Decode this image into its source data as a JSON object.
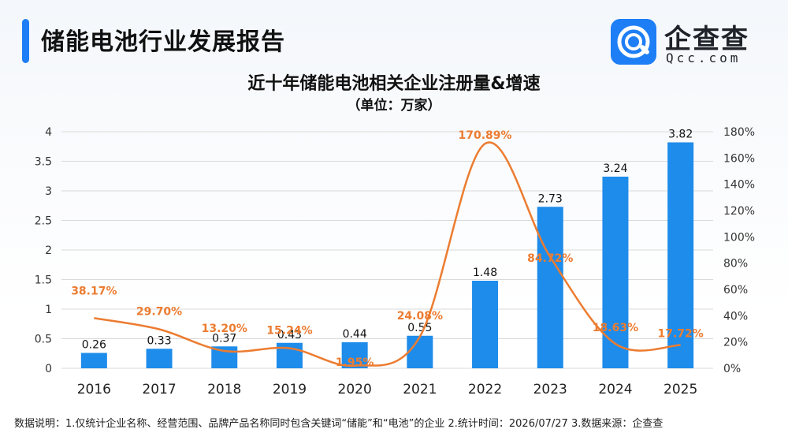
{
  "header": {
    "report_title": "储能电池行业发展报告",
    "logo_name": "企查查",
    "logo_sub": "Qcc.com",
    "accent_color": "#1e7ef5"
  },
  "chart_data": {
    "type": "bar",
    "title": "近十年储能电池相关企业注册量&增速",
    "subtitle": "（单位：万家）",
    "categories": [
      "2016",
      "2017",
      "2018",
      "2019",
      "2020",
      "2021",
      "2022",
      "2023",
      "2024",
      "2025"
    ],
    "series": [
      {
        "type": "bar",
        "axis": "left",
        "values": [
          0.26,
          0.33,
          0.37,
          0.43,
          0.44,
          0.55,
          1.48,
          2.73,
          3.24,
          3.82
        ],
        "labels": [
          "0.26",
          "0.33",
          "0.37",
          "0.43",
          "0.44",
          "0.55",
          "1.48",
          "2.73",
          "3.24",
          "3.82"
        ],
        "color": "#1e8cea"
      },
      {
        "type": "line",
        "axis": "right",
        "values": [
          38.17,
          29.7,
          13.2,
          15.24,
          1.95,
          24.08,
          170.89,
          84.72,
          18.63,
          17.72
        ],
        "labels": [
          "38.17%",
          "29.70%",
          "13.20%",
          "15.24%",
          "1.95%",
          "24.08%",
          "170.89%",
          "84.72%",
          "18.63%",
          "17.72%"
        ],
        "color": "#ec7c30"
      }
    ],
    "y_left": {
      "ylim": [
        0,
        4
      ],
      "ticks": [
        "0",
        "0.5",
        "1",
        "1.5",
        "2",
        "2.5",
        "3",
        "3.5",
        "4"
      ]
    },
    "y_right": {
      "ylim": [
        0,
        180
      ],
      "ticks": [
        "0%",
        "20%",
        "40%",
        "60%",
        "80%",
        "100%",
        "120%",
        "140%",
        "160%",
        "180%"
      ]
    },
    "grid": true,
    "legend": "none"
  },
  "footnote": "数据说明：1.仅统计企业名称、经营范围、品牌产品名称同时包含关键词“储能”和“电池”的企业  2.统计时间：2026/07/27    3.数据来源：企查查"
}
